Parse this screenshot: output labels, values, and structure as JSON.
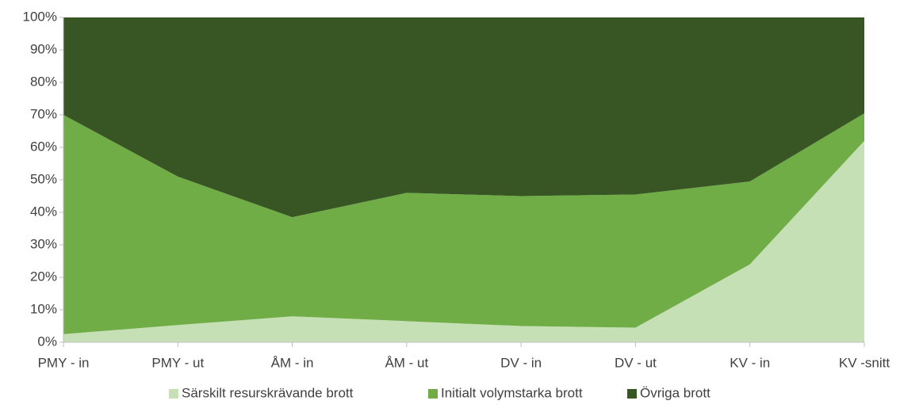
{
  "chart_data": {
    "type": "stacked_area",
    "categories": [
      "PMY - in",
      "PMY - ut",
      "ÅM - in",
      "ÅM - ut",
      "DV - in",
      "DV - ut",
      "KV - in",
      "KV -snitt"
    ],
    "series": [
      {
        "name": "Särskilt resurskrävande brott",
        "color": "#c5e0b4",
        "values": [
          2.5,
          5.3,
          8,
          6.5,
          5,
          4.5,
          24,
          62
        ]
      },
      {
        "name": "Initialt volymstarka brott",
        "color": "#70ad47",
        "values": [
          67.5,
          45.7,
          30.5,
          39.5,
          40,
          41,
          25.5,
          8.5
        ]
      },
      {
        "name": "Övriga brott",
        "color": "#375623",
        "values": [
          30,
          49,
          61.5,
          54,
          55,
          54.5,
          50.5,
          29.5
        ]
      }
    ],
    "ylim": [
      0,
      100
    ],
    "yticks": [
      {
        "value": 0,
        "label": "0%"
      },
      {
        "value": 10,
        "label": "10%"
      },
      {
        "value": 20,
        "label": "20%"
      },
      {
        "value": 30,
        "label": "30%"
      },
      {
        "value": 40,
        "label": "40%"
      },
      {
        "value": 50,
        "label": "50%"
      },
      {
        "value": 60,
        "label": "60%"
      },
      {
        "value": 70,
        "label": "70%"
      },
      {
        "value": 80,
        "label": "80%"
      },
      {
        "value": 90,
        "label": "90%"
      },
      {
        "value": 100,
        "label": "100%"
      }
    ],
    "legend": "bottom"
  }
}
